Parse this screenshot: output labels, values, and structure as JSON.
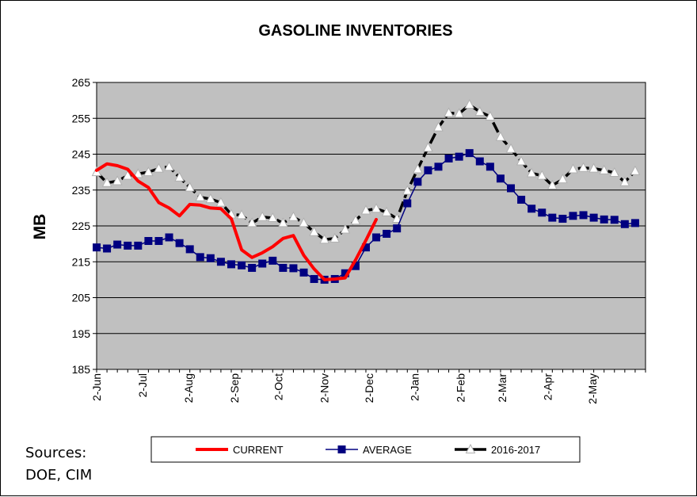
{
  "sources": {
    "line1": "Sources:",
    "line2": "DOE, CIM"
  },
  "colors": {
    "plot_bg": "#c0c0c0",
    "current": "#ff0000",
    "average": "#000080",
    "prior": "#000000"
  },
  "chart_data": {
    "type": "line",
    "title": "GASOLINE INVENTORIES",
    "xlabel": "",
    "ylabel": "MB",
    "ylim": [
      185,
      265
    ],
    "yticks": [
      185,
      195,
      205,
      215,
      225,
      235,
      245,
      255,
      265
    ],
    "grid": "horizontal",
    "legend_position": "bottom",
    "x_unit": "weeks from early June",
    "xlim": [
      0,
      53
    ],
    "x_tick_labels": [
      {
        "label": "2-Jun",
        "week": 0
      },
      {
        "label": "2-Jul",
        "week": 4.43
      },
      {
        "label": "2-Aug",
        "week": 8.86
      },
      {
        "label": "2-Sep",
        "week": 13.29
      },
      {
        "label": "2-Oct",
        "week": 17.57
      },
      {
        "label": "2-Nov",
        "week": 22
      },
      {
        "label": "2-Dec",
        "week": 26.29
      },
      {
        "label": "2-Jan",
        "week": 30.71
      },
      {
        "label": "2-Feb",
        "week": 35.14
      },
      {
        "label": "2-Mar",
        "week": 39.14
      },
      {
        "label": "2-Apr",
        "week": 43.57
      },
      {
        "label": "2-May",
        "week": 47.86
      }
    ],
    "series": [
      {
        "name": "CURRENT",
        "marker": "none",
        "values": [
          240.5,
          242.3,
          241.8,
          240.8,
          237.5,
          235.7,
          231.5,
          230.0,
          227.8,
          231.0,
          230.8,
          230.0,
          229.8,
          227.0,
          218.3,
          216.2,
          217.5,
          219.2,
          221.5,
          222.3,
          216.8,
          213.0,
          210.0,
          210.2,
          210.5,
          215.5,
          221.0,
          226.8
        ]
      },
      {
        "name": "AVERAGE",
        "marker": "square",
        "values": [
          219.0,
          218.7,
          219.8,
          219.5,
          219.5,
          220.8,
          220.8,
          221.8,
          220.2,
          218.5,
          216.3,
          216.0,
          215.0,
          214.3,
          214.0,
          213.3,
          214.5,
          215.3,
          213.3,
          213.2,
          212.0,
          210.2,
          210.0,
          210.2,
          211.8,
          213.8,
          219.0,
          221.8,
          222.8,
          224.3,
          231.3,
          237.3,
          240.5,
          241.5,
          243.8,
          244.3,
          245.3,
          243.0,
          241.5,
          238.2,
          235.5,
          232.3,
          229.8,
          228.7,
          227.3,
          227.0,
          227.8,
          228.0,
          227.3,
          226.8,
          226.7,
          225.5,
          225.8
        ]
      },
      {
        "name": "2016-2017",
        "marker": "triangle",
        "values": [
          240.0,
          237.0,
          237.5,
          239.0,
          239.5,
          240.0,
          241.0,
          241.5,
          238.5,
          235.7,
          233.0,
          232.5,
          231.5,
          228.2,
          228.0,
          225.8,
          227.5,
          227.2,
          225.8,
          227.5,
          225.8,
          223.3,
          221.2,
          221.5,
          224.0,
          226.5,
          229.3,
          229.8,
          228.8,
          227.0,
          234.8,
          240.8,
          246.8,
          252.5,
          256.5,
          256.3,
          258.8,
          256.8,
          255.5,
          249.8,
          246.5,
          243.0,
          239.7,
          239.0,
          236.3,
          238.0,
          240.8,
          241.2,
          241.0,
          240.5,
          239.8,
          237.2,
          240.3
        ]
      }
    ]
  }
}
